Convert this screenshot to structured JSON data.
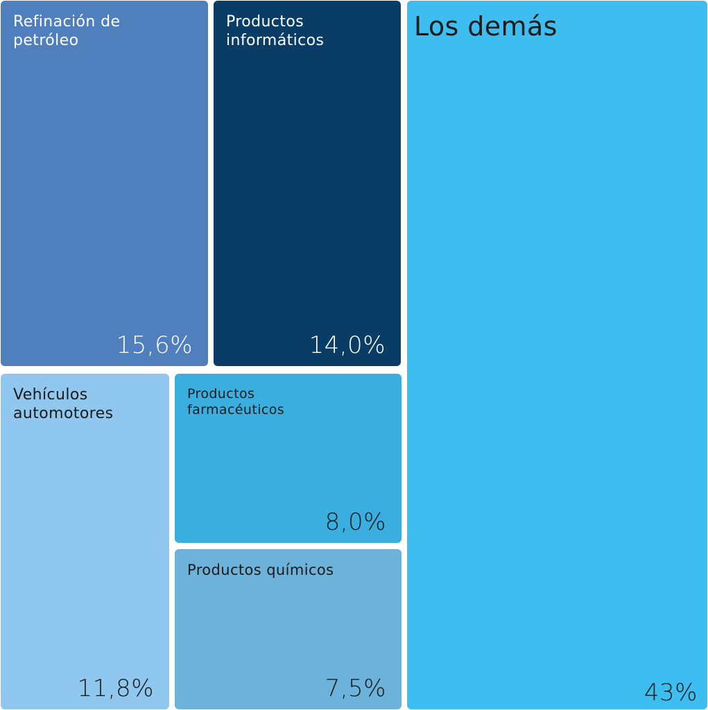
{
  "chart_data": {
    "type": "treemap",
    "title": "",
    "unit": "%",
    "items": [
      {
        "id": "refinacion",
        "label": "Refinación de\npetróleo",
        "value": 15.6,
        "value_label": "15,6%",
        "color": "#4F7FBD",
        "text_color": "#ffffff"
      },
      {
        "id": "informaticos",
        "label": "Productos\ninformáticos",
        "value": 14.0,
        "value_label": "14,0%",
        "color": "#0A3D66",
        "text_color": "#ffffff"
      },
      {
        "id": "vehiculos",
        "label": "Vehículos\nautomotores",
        "value": 11.8,
        "value_label": "11,8%",
        "color": "#8FC7EE",
        "text_color": "#1b1b1b"
      },
      {
        "id": "farmaceuticos",
        "label": "Productos\nfarmacéuticos",
        "value": 8.0,
        "value_label": "8,0%",
        "color": "#3AAEDF",
        "text_color": "#1b1b1b"
      },
      {
        "id": "quimicos",
        "label": "Productos químicos",
        "value": 7.5,
        "value_label": "7,5%",
        "color": "#6CB2DB",
        "text_color": "#1b1b1b"
      },
      {
        "id": "demas",
        "label": "Los demás",
        "value": 43,
        "value_label": "43%",
        "color": "#3EBEF0",
        "text_color": "#1b1b1b"
      }
    ]
  }
}
